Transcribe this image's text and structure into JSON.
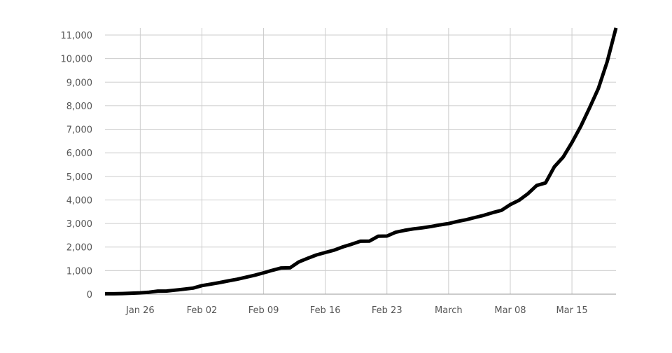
{
  "chart_data": {
    "type": "line",
    "title": "",
    "xlabel": "",
    "ylabel": "",
    "ylim": [
      0,
      11000
    ],
    "yticks": [
      0,
      1000,
      2000,
      3000,
      4000,
      5000,
      6000,
      7000,
      8000,
      9000,
      10000,
      11000
    ],
    "ytick_labels": [
      "0",
      "1,000",
      "2,000",
      "3,000",
      "4,000",
      "5,000",
      "6,000",
      "7,000",
      "8,000",
      "9,000",
      "10,000",
      "11,000"
    ],
    "x_start": "2020-01-22",
    "x_end": "2020-03-20",
    "xticks": [
      {
        "date": "2020-01-26",
        "label": "Jan 26"
      },
      {
        "date": "2020-02-02",
        "label": "Feb 02"
      },
      {
        "date": "2020-02-09",
        "label": "Feb 09"
      },
      {
        "date": "2020-02-16",
        "label": "Feb 16"
      },
      {
        "date": "2020-02-23",
        "label": "Feb 23"
      },
      {
        "date": "2020-03-01",
        "label": "March"
      },
      {
        "date": "2020-03-08",
        "label": "Mar 08"
      },
      {
        "date": "2020-03-15",
        "label": "Mar 15"
      }
    ],
    "grid": true,
    "line_color": "#000000",
    "grid_color": "#cccccc",
    "series": [
      {
        "dates_start": "2020-01-22",
        "interval": "daily",
        "values": [
          17,
          18,
          26,
          42,
          56,
          82,
          131,
          133,
          171,
          213,
          259,
          362,
          426,
          492,
          564,
          634,
          719,
          806,
          906,
          1013,
          1113,
          1118,
          1371,
          1523,
          1666,
          1770,
          1868,
          2007,
          2122,
          2247,
          2251,
          2458,
          2469,
          2629,
          2708,
          2770,
          2814,
          2872,
          2941,
          2996,
          3085,
          3160,
          3254,
          3348,
          3460,
          3558,
          3802,
          3988,
          4262,
          4615,
          4720,
          5404,
          5819,
          6440,
          7126,
          7905,
          8733,
          9867,
          11299
        ]
      }
    ]
  }
}
